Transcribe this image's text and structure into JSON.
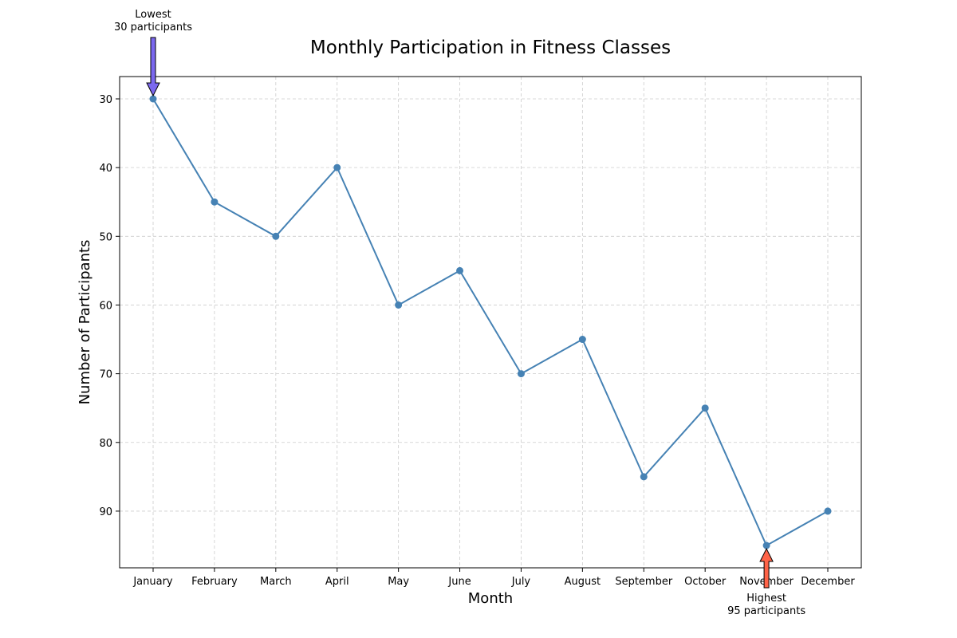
{
  "chart_data": {
    "type": "line",
    "title": "Monthly Participation in Fitness Classes",
    "xlabel": "Month",
    "ylabel": "Number of Participants",
    "categories": [
      "January",
      "February",
      "March",
      "April",
      "May",
      "June",
      "July",
      "August",
      "September",
      "October",
      "November",
      "December"
    ],
    "values": [
      30,
      45,
      50,
      40,
      60,
      55,
      70,
      65,
      85,
      75,
      95,
      90
    ],
    "y_axis_inverted": true,
    "ylim": [
      98.25,
      26.75
    ],
    "yticks": [
      30,
      40,
      50,
      60,
      70,
      80,
      90
    ],
    "grid": true,
    "colors": {
      "line": "#4682b4",
      "lowest_arrow": "#7b68ee",
      "highest_arrow": "#ff6347"
    },
    "annotations": {
      "lowest": {
        "label": "Lowest",
        "detail": "30 participants",
        "month": "January",
        "value": 30
      },
      "highest": {
        "label": "Highest",
        "detail": "95 participants",
        "month": "November",
        "value": 95
      }
    }
  }
}
